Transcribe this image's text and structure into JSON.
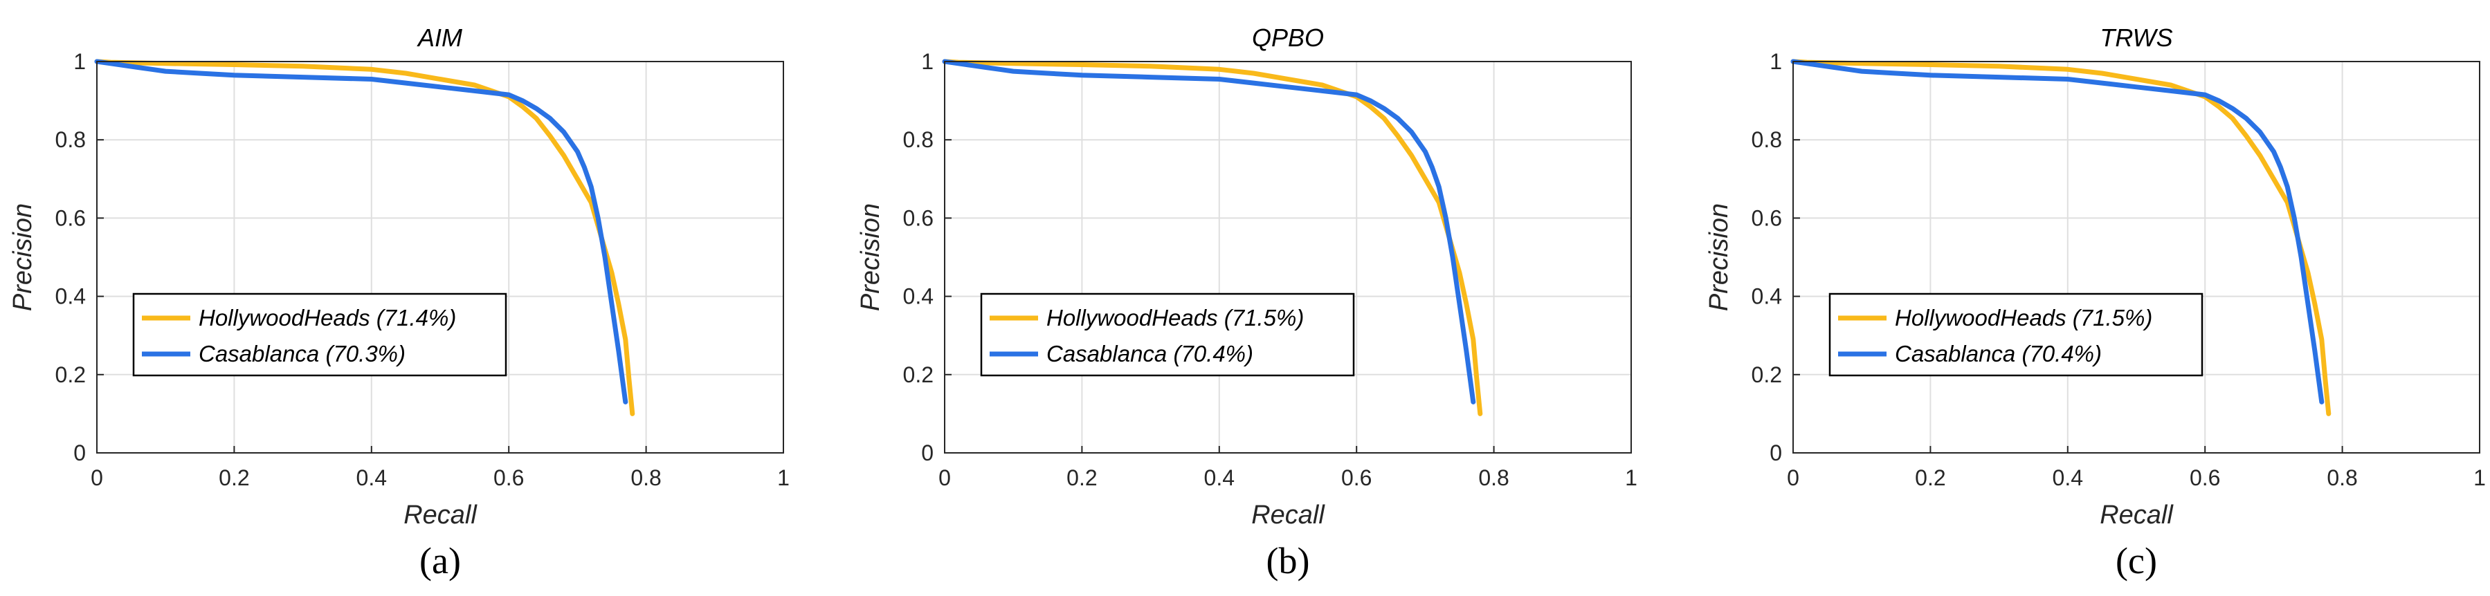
{
  "colors": {
    "hollywood": "#F9B91A",
    "casablanca": "#2A72E4",
    "grid": "#DFDFDF",
    "axis": "#262626"
  },
  "chart_data": [
    {
      "type": "line",
      "title": "AIM",
      "caption": "(a)",
      "xlabel": "Recall",
      "ylabel": "Precision",
      "xlim": [
        0,
        1
      ],
      "ylim": [
        0,
        1
      ],
      "grid": true,
      "legend_position": "lower-left",
      "xticks": [
        0,
        0.2,
        0.4,
        0.6,
        0.8,
        1
      ],
      "xtick_labels": [
        "0",
        "0.2",
        "0.4",
        "0.6",
        "0.8",
        "1"
      ],
      "yticks": [
        0,
        0.2,
        0.4,
        0.6,
        0.8,
        1
      ],
      "ytick_labels": [
        "0",
        "0.2",
        "0.4",
        "0.6",
        "0.8",
        "1"
      ],
      "series": [
        {
          "name": "HollywoodHeads (71.4%)",
          "color": "hollywood",
          "x": [
            0.0,
            0.02,
            0.05,
            0.1,
            0.2,
            0.3,
            0.4,
            0.45,
            0.5,
            0.55,
            0.6,
            0.62,
            0.64,
            0.66,
            0.68,
            0.7,
            0.72,
            0.73,
            0.74,
            0.75,
            0.76,
            0.77,
            0.775,
            0.78
          ],
          "y": [
            1.0,
            0.998,
            0.997,
            0.995,
            0.992,
            0.988,
            0.98,
            0.97,
            0.955,
            0.94,
            0.91,
            0.885,
            0.855,
            0.81,
            0.76,
            0.7,
            0.64,
            0.58,
            0.52,
            0.46,
            0.38,
            0.29,
            0.19,
            0.1
          ]
        },
        {
          "name": "Casablanca (70.3%)",
          "color": "casablanca",
          "x": [
            0.0,
            0.02,
            0.04,
            0.06,
            0.08,
            0.1,
            0.15,
            0.2,
            0.3,
            0.4,
            0.45,
            0.5,
            0.55,
            0.6,
            0.62,
            0.64,
            0.66,
            0.68,
            0.7,
            0.71,
            0.72,
            0.73,
            0.74,
            0.75,
            0.76,
            0.77
          ],
          "y": [
            1.0,
            0.995,
            0.99,
            0.985,
            0.98,
            0.975,
            0.97,
            0.965,
            0.96,
            0.955,
            0.945,
            0.935,
            0.925,
            0.915,
            0.9,
            0.88,
            0.855,
            0.82,
            0.77,
            0.73,
            0.68,
            0.6,
            0.5,
            0.38,
            0.26,
            0.13
          ]
        }
      ]
    },
    {
      "type": "line",
      "title": "QPBO",
      "caption": "(b)",
      "xlabel": "Recall",
      "ylabel": "Precision",
      "xlim": [
        0,
        1
      ],
      "ylim": [
        0,
        1
      ],
      "grid": true,
      "legend_position": "lower-left",
      "xticks": [
        0,
        0.2,
        0.4,
        0.6,
        0.8,
        1
      ],
      "xtick_labels": [
        "0",
        "0.2",
        "0.4",
        "0.6",
        "0.8",
        "1"
      ],
      "yticks": [
        0,
        0.2,
        0.4,
        0.6,
        0.8,
        1
      ],
      "ytick_labels": [
        "0",
        "0.2",
        "0.4",
        "0.6",
        "0.8",
        "1"
      ],
      "series": [
        {
          "name": "HollywoodHeads (71.5%)",
          "color": "hollywood",
          "x": [
            0.0,
            0.02,
            0.05,
            0.1,
            0.2,
            0.3,
            0.4,
            0.45,
            0.5,
            0.55,
            0.6,
            0.62,
            0.64,
            0.66,
            0.68,
            0.7,
            0.72,
            0.73,
            0.74,
            0.75,
            0.76,
            0.77,
            0.775,
            0.78
          ],
          "y": [
            1.0,
            0.998,
            0.997,
            0.995,
            0.992,
            0.988,
            0.98,
            0.97,
            0.955,
            0.94,
            0.91,
            0.885,
            0.855,
            0.81,
            0.76,
            0.7,
            0.64,
            0.58,
            0.52,
            0.46,
            0.38,
            0.29,
            0.19,
            0.1
          ]
        },
        {
          "name": "Casablanca (70.4%)",
          "color": "casablanca",
          "x": [
            0.0,
            0.02,
            0.04,
            0.06,
            0.08,
            0.1,
            0.15,
            0.2,
            0.3,
            0.4,
            0.45,
            0.5,
            0.55,
            0.6,
            0.62,
            0.64,
            0.66,
            0.68,
            0.7,
            0.71,
            0.72,
            0.73,
            0.74,
            0.75,
            0.76,
            0.77
          ],
          "y": [
            1.0,
            0.995,
            0.99,
            0.985,
            0.98,
            0.975,
            0.97,
            0.965,
            0.96,
            0.955,
            0.945,
            0.935,
            0.925,
            0.915,
            0.9,
            0.88,
            0.855,
            0.82,
            0.77,
            0.73,
            0.68,
            0.6,
            0.5,
            0.38,
            0.26,
            0.13
          ]
        }
      ]
    },
    {
      "type": "line",
      "title": "TRWS",
      "caption": "(c)",
      "xlabel": "Recall",
      "ylabel": "Precision",
      "xlim": [
        0,
        1
      ],
      "ylim": [
        0,
        1
      ],
      "grid": true,
      "legend_position": "lower-left",
      "xticks": [
        0,
        0.2,
        0.4,
        0.6,
        0.8,
        1
      ],
      "xtick_labels": [
        "0",
        "0.2",
        "0.4",
        "0.6",
        "0.8",
        "1"
      ],
      "yticks": [
        0,
        0.2,
        0.4,
        0.6,
        0.8,
        1
      ],
      "ytick_labels": [
        "0",
        "0.2",
        "0.4",
        "0.6",
        "0.8",
        "1"
      ],
      "series": [
        {
          "name": "HollywoodHeads (71.5%)",
          "color": "hollywood",
          "x": [
            0.0,
            0.02,
            0.05,
            0.1,
            0.2,
            0.3,
            0.4,
            0.45,
            0.5,
            0.55,
            0.6,
            0.62,
            0.64,
            0.66,
            0.68,
            0.7,
            0.72,
            0.73,
            0.74,
            0.75,
            0.76,
            0.77,
            0.775,
            0.78
          ],
          "y": [
            1.0,
            0.998,
            0.997,
            0.995,
            0.992,
            0.988,
            0.98,
            0.97,
            0.955,
            0.94,
            0.91,
            0.885,
            0.855,
            0.81,
            0.76,
            0.7,
            0.64,
            0.58,
            0.52,
            0.46,
            0.38,
            0.29,
            0.19,
            0.1
          ]
        },
        {
          "name": "Casablanca (70.4%)",
          "color": "casablanca",
          "x": [
            0.0,
            0.02,
            0.04,
            0.06,
            0.08,
            0.1,
            0.15,
            0.2,
            0.3,
            0.4,
            0.45,
            0.5,
            0.55,
            0.6,
            0.62,
            0.64,
            0.66,
            0.68,
            0.7,
            0.71,
            0.72,
            0.73,
            0.74,
            0.75,
            0.76,
            0.77
          ],
          "y": [
            1.0,
            0.995,
            0.99,
            0.985,
            0.98,
            0.975,
            0.97,
            0.965,
            0.96,
            0.955,
            0.945,
            0.935,
            0.925,
            0.915,
            0.9,
            0.88,
            0.855,
            0.82,
            0.77,
            0.73,
            0.68,
            0.6,
            0.5,
            0.38,
            0.26,
            0.13
          ]
        }
      ]
    }
  ]
}
